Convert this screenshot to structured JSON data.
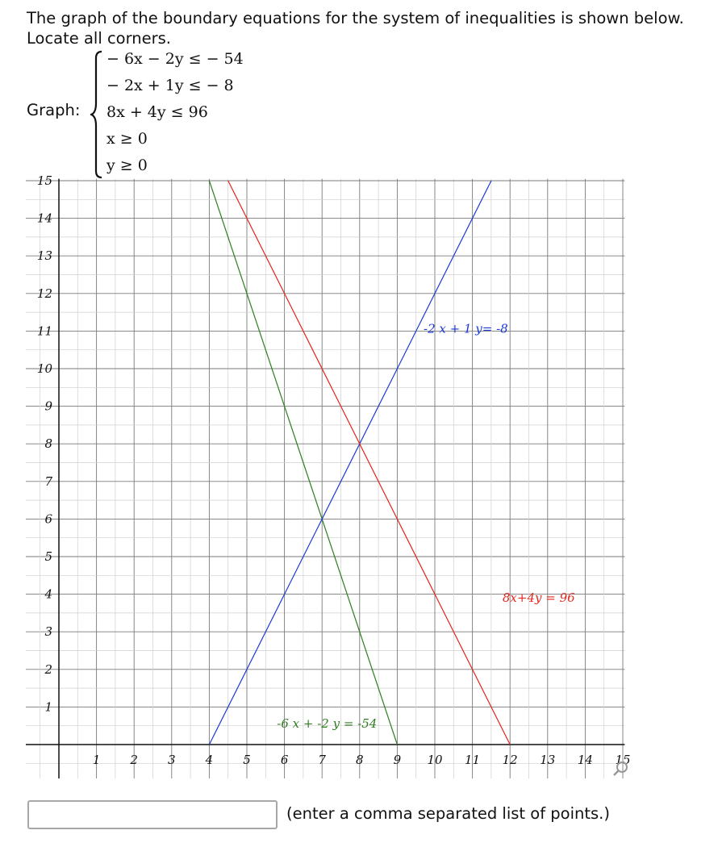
{
  "question": {
    "line1": "The graph of the boundary equations for the system of inequalities is shown below.",
    "line2": "Locate all corners."
  },
  "system": {
    "label": "Graph:",
    "inequalities": [
      "− 6x − 2y ≤ − 54",
      "− 2x + 1y ≤ − 8",
      "8x + 4y ≤ 96",
      "x ≥ 0",
      "y ≥ 0"
    ]
  },
  "chart_data": {
    "type": "line",
    "xlim": [
      0,
      15
    ],
    "ylim": [
      0,
      15
    ],
    "grid": true,
    "x_tick_labels": [
      "1",
      "2",
      "3",
      "4",
      "5",
      "6",
      "7",
      "8",
      "9",
      "10",
      "11",
      "12",
      "13",
      "14",
      "15"
    ],
    "y_tick_labels": [
      "1",
      "2",
      "3",
      "4",
      "5",
      "6",
      "7",
      "8",
      "9",
      "10",
      "11",
      "12",
      "13",
      "14",
      "15"
    ],
    "series": [
      {
        "name": "-6 x + -2 y = -54",
        "color": "#2e7d1f",
        "x": [
          4,
          9
        ],
        "y": [
          15,
          0
        ]
      },
      {
        "name": "-2 x + 1 y= -8",
        "color": "#1a3ad6",
        "x": [
          4,
          11.5
        ],
        "y": [
          0,
          15
        ]
      },
      {
        "name": "8x+4y = 96",
        "color": "#e8261c",
        "x": [
          4.5,
          12
        ],
        "y": [
          15,
          0
        ]
      }
    ]
  },
  "answer": {
    "value": "",
    "hint": "(enter a comma separated list of points.)"
  },
  "icons": {
    "zoom": "magnifier-icon"
  }
}
